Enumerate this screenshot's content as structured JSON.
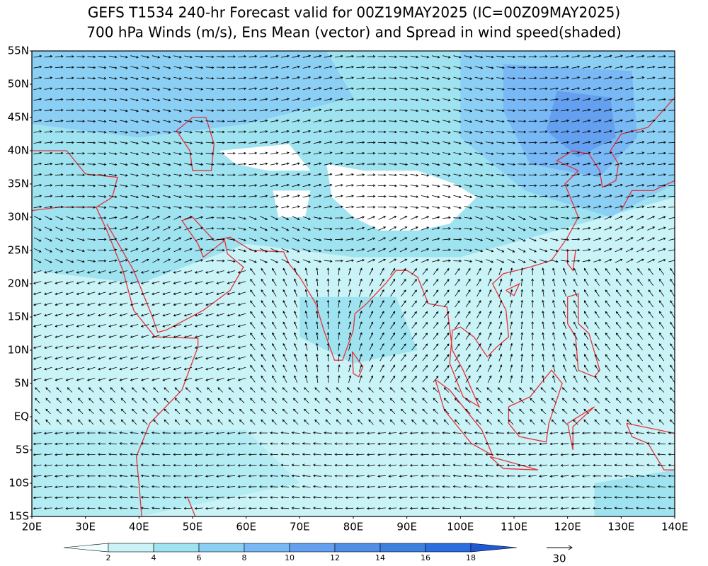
{
  "header": {
    "title_lines": [
      "GEFS T1534 240-hr Forecast valid for 00Z19MAY2025 (IC=00Z09MAY2025)",
      "700 hPa Winds (m/s), Ens Mean (vector) and Spread in wind speed(shaded)"
    ]
  },
  "axes": {
    "lat_labels": [
      "55N",
      "50N",
      "45N",
      "40N",
      "35N",
      "30N",
      "25N",
      "20N",
      "15N",
      "10N",
      "5N",
      "EQ",
      "5S",
      "10S",
      "15S"
    ],
    "lon_labels": [
      "20E",
      "30E",
      "40E",
      "50E",
      "60E",
      "70E",
      "80E",
      "90E",
      "100E",
      "110E",
      "120E",
      "130E",
      "140E"
    ]
  },
  "colorbar": {
    "labels": [
      "2",
      "4",
      "6",
      "8",
      "10",
      "12",
      "14",
      "16",
      "18"
    ]
  },
  "reference_vector": {
    "label": "30"
  }
}
